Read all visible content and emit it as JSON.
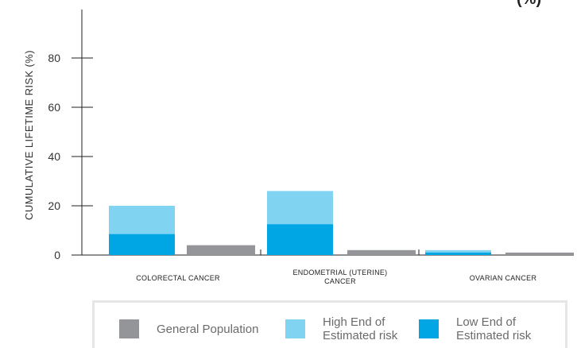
{
  "chart_data": {
    "type": "bar",
    "title_fragment": "(%)",
    "ylabel": "CUMULATIVE LIFETIME RISK (%)",
    "ylim": [
      0,
      100
    ],
    "yticks": [
      0,
      20,
      40,
      60,
      80
    ],
    "categories": [
      "COLORECTAL CANCER",
      "ENDOMETRIAL (UTERINE)\nCANCER",
      "OVARIAN CANCER"
    ],
    "series": [
      {
        "name": "General Population",
        "color": "#939598",
        "values": [
          4,
          2,
          1
        ]
      },
      {
        "name": "High End of\nEstimated risk",
        "color": "#80d4f2",
        "values": [
          20,
          26,
          2
        ]
      },
      {
        "name": "Low End of\nEstimated risk",
        "color": "#00a5e3",
        "values": [
          8.5,
          12.5,
          1
        ]
      }
    ],
    "grid": false,
    "legend_position": "bottom"
  }
}
